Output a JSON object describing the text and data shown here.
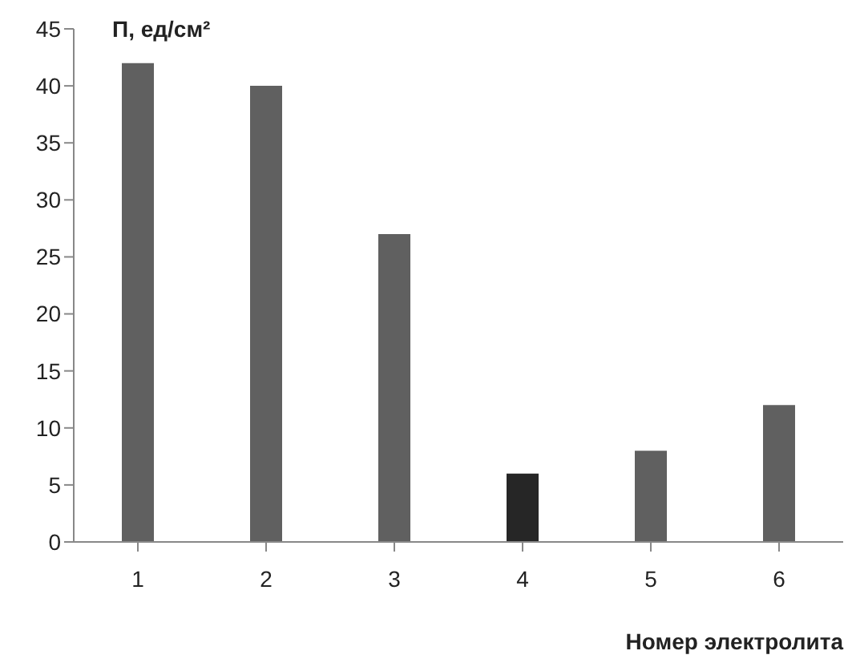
{
  "chart_data": {
    "type": "bar",
    "ylabel": "П, ед/см²",
    "xlabel": "Номер электролита",
    "categories": [
      "1",
      "2",
      "3",
      "4",
      "5",
      "6"
    ],
    "values": [
      42,
      40,
      27,
      6,
      8,
      12
    ],
    "colors": [
      "#606060",
      "#606060",
      "#606060",
      "#262626",
      "#606060",
      "#606060"
    ],
    "ylim": [
      0,
      45
    ],
    "yticks": [
      0,
      5,
      10,
      15,
      20,
      25,
      30,
      35,
      40,
      45
    ],
    "grid": false,
    "legend": false
  }
}
